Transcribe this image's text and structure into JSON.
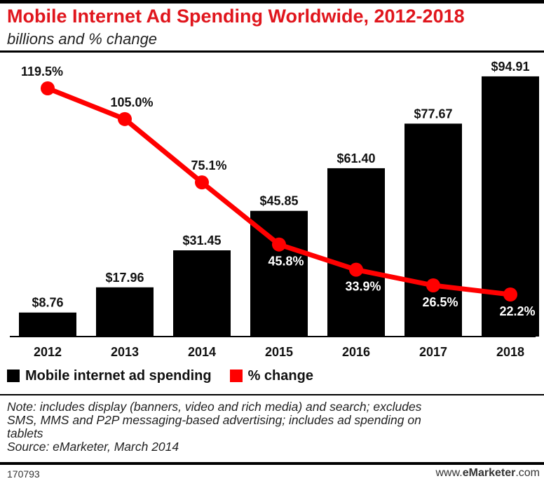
{
  "header": {
    "title": "Mobile Internet Ad Spending Worldwide, 2012-2018",
    "subtitle": "billions and % change"
  },
  "legend": {
    "bar_label": "Mobile internet ad spending",
    "line_label": "% change"
  },
  "note": {
    "line1": "Note: includes display (banners, video and rich media) and search; excludes",
    "line2": "SMS, MMS and P2P messaging-based advertising; includes ad spending on",
    "line3": "tablets",
    "source": "Source: eMarketer, March 2014"
  },
  "footer": {
    "chart_id": "170793",
    "brand_prefix": "www.",
    "brand_bold": "eMarketer",
    "brand_suffix": ".com"
  },
  "colors": {
    "bar": "#000000",
    "line": "#ff0000",
    "title": "#e0161d"
  },
  "chart_data": {
    "type": "bar",
    "title": "Mobile Internet Ad Spending Worldwide, 2012-2018",
    "subtitle": "billions and % change",
    "categories": [
      "2012",
      "2013",
      "2014",
      "2015",
      "2016",
      "2017",
      "2018"
    ],
    "ylim": [
      0,
      100
    ],
    "series": [
      {
        "name": "Mobile internet ad spending",
        "type": "bar",
        "values": [
          8.76,
          17.96,
          31.45,
          45.85,
          61.4,
          77.67,
          94.91
        ],
        "labels": [
          "$8.76",
          "$17.96",
          "$31.45",
          "$45.85",
          "$61.40",
          "$77.67",
          "$94.91"
        ]
      },
      {
        "name": "% change",
        "type": "line",
        "values": [
          119.5,
          105.0,
          75.1,
          45.8,
          33.9,
          26.5,
          22.2
        ],
        "labels": [
          "119.5%",
          "105.0%",
          "75.1%",
          "45.8%",
          "33.9%",
          "26.5%",
          "22.2%"
        ],
        "ylim": [
          0,
          125
        ]
      }
    ],
    "legend_position": "bottom-left",
    "grid": false
  }
}
